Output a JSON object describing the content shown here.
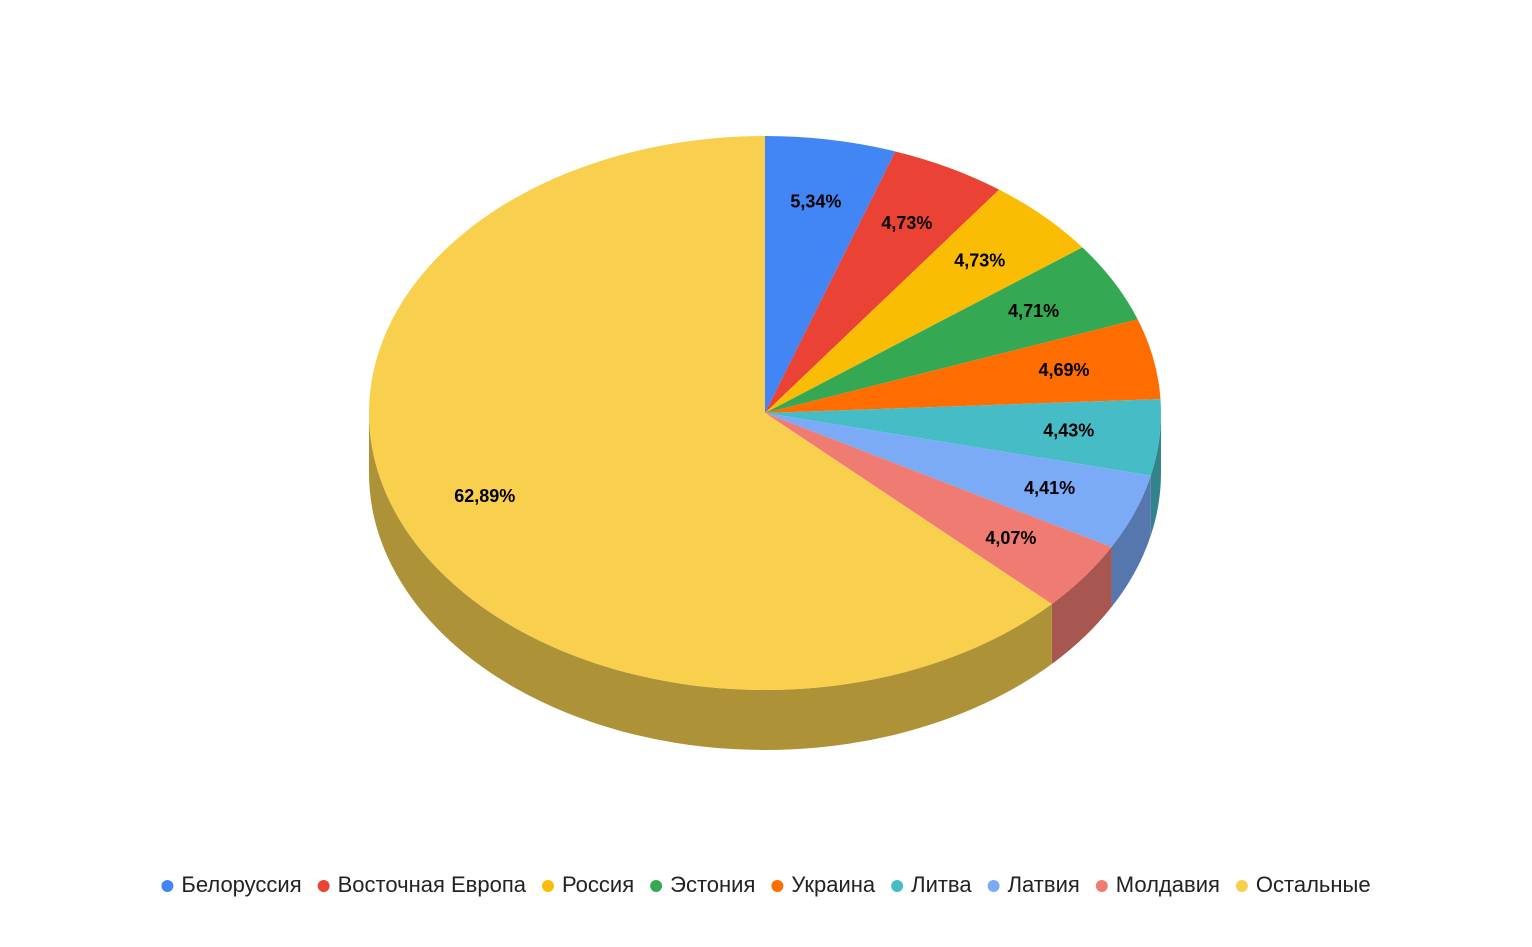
{
  "chart_data": {
    "type": "pie",
    "categories": [
      "Белоруссия",
      "Восточная Европа",
      "Россия",
      "Эстония",
      "Украина",
      "Литва",
      "Латвия",
      "Молдавия",
      "Остальные"
    ],
    "values": [
      5.34,
      4.73,
      4.73,
      4.71,
      4.69,
      4.43,
      4.41,
      4.07,
      62.89
    ],
    "value_labels": [
      "5,34%",
      "4,73%",
      "4,73%",
      "4,71%",
      "4,69%",
      "4,43%",
      "4,41%",
      "4,07%",
      "62,89%"
    ],
    "colors": [
      "#4285f4",
      "#ea4335",
      "#fbbc04",
      "#34a853",
      "#ff6d01",
      "#46bdc6",
      "#7baaf7",
      "#f07b72",
      "#f9d04e"
    ],
    "legend": "bottom"
  }
}
